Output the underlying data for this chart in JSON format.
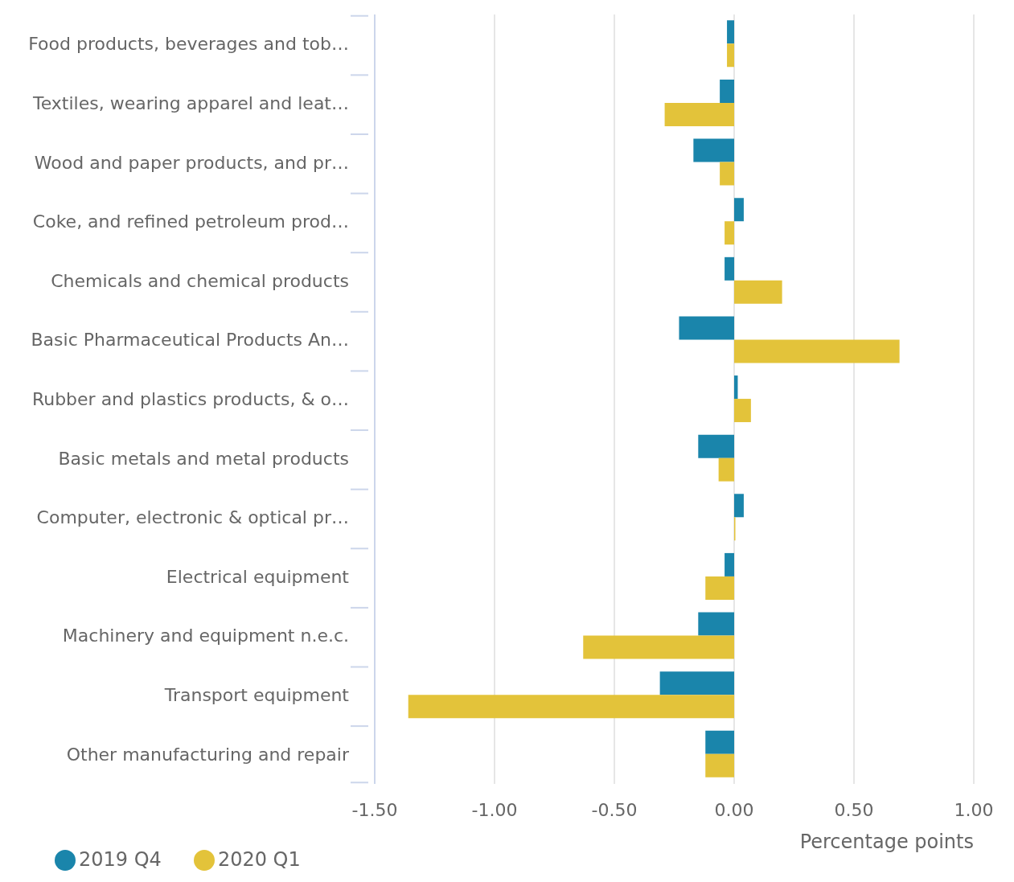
{
  "chart_data": {
    "type": "bar",
    "orientation": "horizontal",
    "xlabel": "Percentage points",
    "categories": [
      "Food products, beverages and tob…",
      "Textiles, wearing apparel and leat…",
      "Wood and paper products, and pr…",
      "Coke, and refined petroleum prod…",
      "Chemicals and chemical products",
      "Basic Pharmaceutical Products An…",
      "Rubber and plastics products, & o…",
      "Basic metals and metal products",
      "Computer, electronic & optical pr…",
      "Electrical equipment",
      "Machinery and equipment n.e.c.",
      "Transport equipment",
      "Other manufacturing and repair"
    ],
    "series": [
      {
        "name": "2019 Q4",
        "color": "#1a85ab",
        "values": [
          -0.03,
          -0.06,
          -0.17,
          0.04,
          -0.04,
          -0.23,
          0.015,
          -0.15,
          0.04,
          -0.04,
          -0.15,
          -0.31,
          -0.12
        ]
      },
      {
        "name": "2020 Q1",
        "color": "#e3c33a",
        "values": [
          -0.03,
          -0.29,
          -0.06,
          -0.04,
          0.2,
          0.69,
          0.07,
          -0.065,
          0.005,
          -0.12,
          -0.63,
          -1.36,
          -0.12
        ]
      }
    ],
    "xlim": [
      -1.5,
      1.0
    ],
    "xticks": [
      {
        "value": -1.5,
        "label": "-1.50"
      },
      {
        "value": -1.0,
        "label": "-1.00"
      },
      {
        "value": -0.5,
        "label": "-0.50"
      },
      {
        "value": 0,
        "label": "0.00"
      },
      {
        "value": 0.5,
        "label": "0.50"
      },
      {
        "value": 1.0,
        "label": "1.00"
      }
    ],
    "grid": "x",
    "legend": "bottom left"
  }
}
